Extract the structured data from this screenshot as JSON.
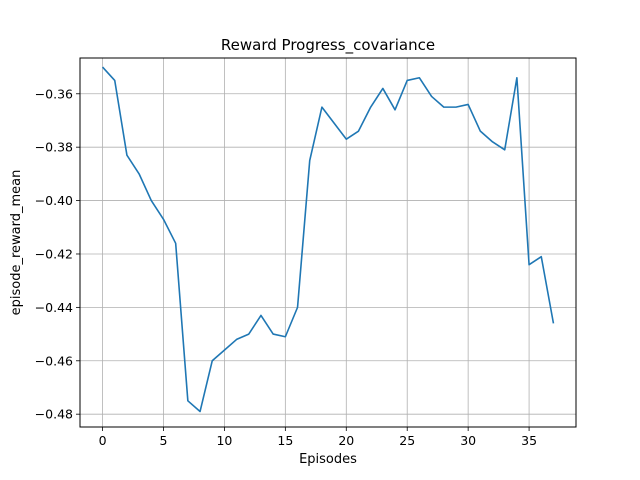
{
  "chart_data": {
    "type": "line",
    "title": "Reward Progress_covariance",
    "xlabel": "Episodes",
    "ylabel": "episode_reward_mean",
    "xlim": [
      -1.85,
      38.85
    ],
    "ylim": [
      -0.4848,
      -0.3466
    ],
    "xticks": [
      0,
      5,
      10,
      15,
      20,
      25,
      30,
      35
    ],
    "yticks": [
      -0.48,
      -0.46,
      -0.44,
      -0.42,
      -0.4,
      -0.38,
      -0.36
    ],
    "ytick_labels": [
      "−0.48",
      "−0.46",
      "−0.44",
      "−0.42",
      "−0.40",
      "−0.38",
      "−0.36"
    ],
    "grid": true,
    "series": [
      {
        "color": "#1f77b4",
        "x": [
          0,
          1,
          2,
          3,
          4,
          5,
          6,
          7,
          8,
          9,
          10,
          11,
          12,
          13,
          14,
          15,
          16,
          17,
          18,
          19,
          20,
          21,
          22,
          23,
          24,
          25,
          26,
          27,
          28,
          29,
          30,
          31,
          32,
          33,
          34,
          35,
          36,
          37
        ],
        "y": [
          -0.35,
          -0.355,
          -0.383,
          -0.39,
          -0.4,
          -0.407,
          -0.416,
          -0.475,
          -0.479,
          -0.46,
          -0.456,
          -0.452,
          -0.45,
          -0.443,
          -0.45,
          -0.451,
          -0.44,
          -0.385,
          -0.365,
          -0.371,
          -0.377,
          -0.374,
          -0.365,
          -0.358,
          -0.366,
          -0.355,
          -0.354,
          -0.361,
          -0.365,
          -0.365,
          -0.364,
          -0.374,
          -0.378,
          -0.381,
          -0.354,
          -0.424,
          -0.421,
          -0.446
        ]
      }
    ]
  }
}
